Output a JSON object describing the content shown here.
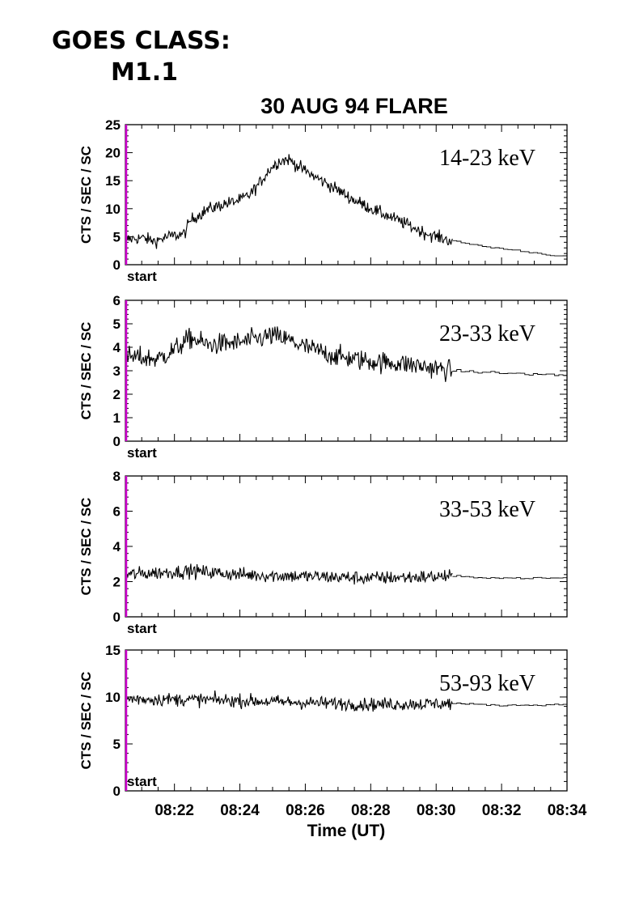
{
  "header": {
    "goes_label": "GOES CLASS:",
    "goes_class": "M1.1"
  },
  "chart_data": {
    "type": "line",
    "title": "30 AUG 94 FLARE",
    "xlabel": "Time (UT)",
    "x_unit": "minutes after 08:20 UT",
    "xlim": [
      0.5,
      14
    ],
    "x_tick_labels": [
      "08:22",
      "08:24",
      "08:26",
      "08:28",
      "08:30",
      "08:32",
      "08:34"
    ],
    "x_ticks": [
      2,
      4,
      6,
      8,
      10,
      12,
      14
    ],
    "start_marker": {
      "label": "start",
      "x": 0.5,
      "color": "#cc00cc"
    },
    "high_res_end": 10.5,
    "panels": [
      {
        "energy_band": "14-23 keV",
        "ylabel": "CTS / SEC / SC",
        "ylim": [
          0,
          25
        ],
        "y_ticks": [
          0,
          5,
          10,
          15,
          20,
          25
        ],
        "noise": 0.8,
        "envelope": [
          [
            0.5,
            4.5
          ],
          [
            1.0,
            4.8
          ],
          [
            1.4,
            4.2
          ],
          [
            1.8,
            5.0
          ],
          [
            2.3,
            5.5
          ],
          [
            2.5,
            8.0
          ],
          [
            3.0,
            9.8
          ],
          [
            3.5,
            10.8
          ],
          [
            4.0,
            11.5
          ],
          [
            4.3,
            12.5
          ],
          [
            4.6,
            14.5
          ],
          [
            4.9,
            17.0
          ],
          [
            5.2,
            18.5
          ],
          [
            5.5,
            18.8
          ],
          [
            5.8,
            17.5
          ],
          [
            6.2,
            16.0
          ],
          [
            6.8,
            14.0
          ],
          [
            7.5,
            11.5
          ],
          [
            8.2,
            9.5
          ],
          [
            9.0,
            7.5
          ],
          [
            9.6,
            5.8
          ],
          [
            10.0,
            5.0
          ],
          [
            10.5,
            4.2
          ],
          [
            11.5,
            3.2
          ],
          [
            12.5,
            2.5
          ],
          [
            13.5,
            1.7
          ],
          [
            14.0,
            1.5
          ]
        ]
      },
      {
        "energy_band": "23-33 keV",
        "ylabel": "CTS / SEC / SC",
        "ylim": [
          0,
          6
        ],
        "y_ticks": [
          0,
          1,
          2,
          3,
          4,
          5,
          6
        ],
        "noise": 0.32,
        "envelope": [
          [
            0.5,
            3.6
          ],
          [
            1.5,
            3.5
          ],
          [
            2.0,
            3.9
          ],
          [
            2.5,
            4.4
          ],
          [
            3.0,
            4.1
          ],
          [
            4.0,
            4.2
          ],
          [
            5.0,
            4.5
          ],
          [
            5.5,
            4.3
          ],
          [
            6.0,
            4.0
          ],
          [
            7.0,
            3.6
          ],
          [
            8.0,
            3.4
          ],
          [
            9.0,
            3.3
          ],
          [
            10.0,
            3.1
          ],
          [
            10.5,
            3.0
          ],
          [
            12.0,
            2.9
          ],
          [
            14.0,
            2.8
          ]
        ]
      },
      {
        "energy_band": "33-53 keV",
        "ylabel": "CTS / SEC / SC",
        "ylim": [
          0,
          8
        ],
        "y_ticks": [
          0,
          2,
          4,
          6,
          8
        ],
        "noise": 0.28,
        "envelope": [
          [
            0.5,
            2.4
          ],
          [
            2.5,
            2.6
          ],
          [
            4.0,
            2.4
          ],
          [
            6.0,
            2.3
          ],
          [
            8.0,
            2.2
          ],
          [
            10.5,
            2.3
          ],
          [
            12.0,
            2.2
          ],
          [
            14.0,
            2.2
          ]
        ]
      },
      {
        "energy_band": "53-93 keV",
        "ylabel": "CTS / SEC / SC",
        "ylim": [
          0,
          15
        ],
        "y_ticks": [
          0,
          5,
          10,
          15
        ],
        "noise": 0.5,
        "envelope": [
          [
            0.5,
            9.8
          ],
          [
            3.0,
            9.7
          ],
          [
            6.0,
            9.4
          ],
          [
            8.0,
            9.2
          ],
          [
            10.5,
            9.3
          ],
          [
            12.0,
            9.1
          ],
          [
            14.0,
            9.2
          ]
        ]
      }
    ]
  }
}
